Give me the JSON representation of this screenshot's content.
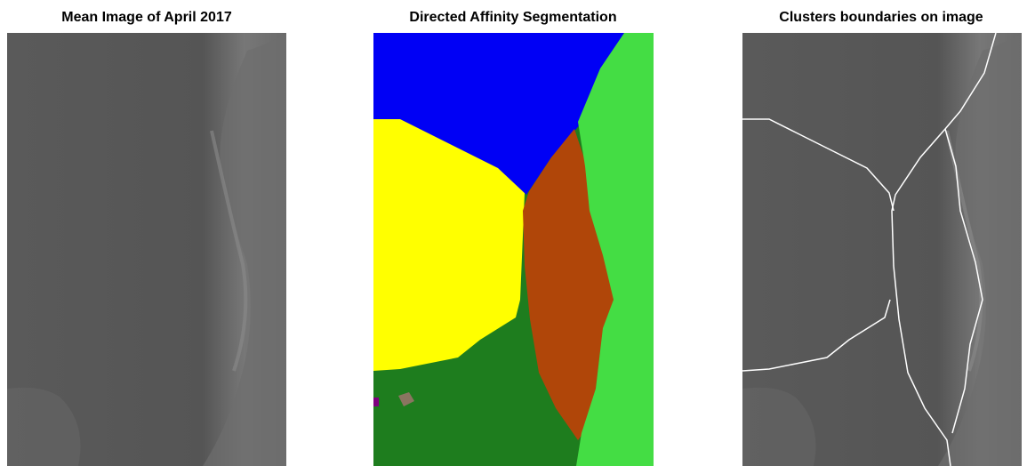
{
  "panels": [
    {
      "title": "Mean Image of April 2017"
    },
    {
      "title": "Directed Affinity Segmentation"
    },
    {
      "title": "Clusters boundaries on image"
    }
  ]
}
